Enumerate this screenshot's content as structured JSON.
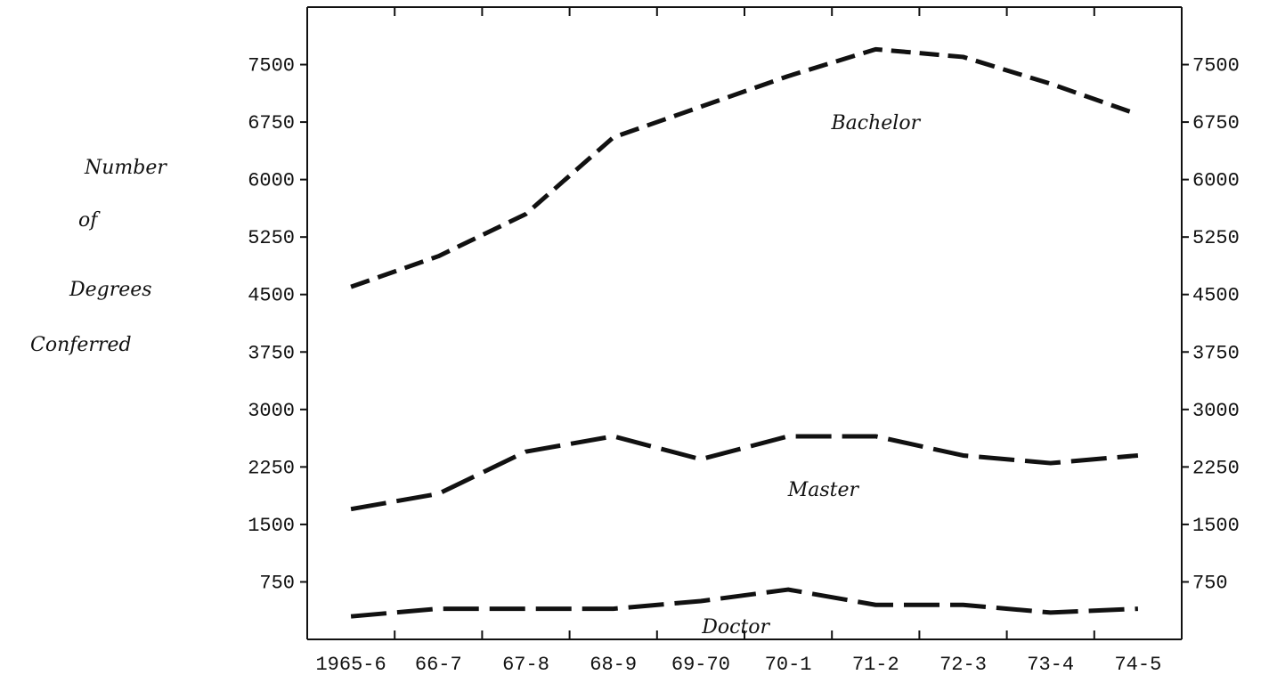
{
  "chart_data": {
    "type": "line",
    "title": "",
    "ylabel_lines": [
      "Number",
      "of",
      "Degrees",
      "Conferred"
    ],
    "xlabel": "",
    "categories": [
      "1965-6",
      "66-7",
      "67-8",
      "68-9",
      "69-70",
      "70-1",
      "71-2",
      "72-3",
      "73-4",
      "74-5"
    ],
    "y_ticks": [
      750,
      1500,
      2250,
      3000,
      3750,
      4500,
      5250,
      6000,
      6750,
      7500
    ],
    "ylim": [
      0,
      8250
    ],
    "grid": false,
    "legend": "none",
    "series": [
      {
        "name": "Bachelor",
        "x": [
          "1965-6",
          "66-7",
          "67-8",
          "68-9",
          "69-70",
          "70-1",
          "71-2",
          "72-3",
          "73-4",
          "74-5"
        ],
        "values": [
          4600,
          5000,
          5550,
          6550,
          6950,
          7350,
          7700,
          7600,
          7250,
          6850
        ],
        "line_style": "dashed"
      },
      {
        "name": "Master",
        "x": [
          "1965-6",
          "66-7",
          "67-8",
          "68-9",
          "69-70",
          "70-1",
          "71-2",
          "72-3",
          "73-4",
          "74-5"
        ],
        "values": [
          1700,
          1900,
          2450,
          2650,
          2350,
          2650,
          2650,
          2400,
          2300,
          2400
        ],
        "line_style": "long-dashed"
      },
      {
        "name": "Doctor",
        "x": [
          "1965-6",
          "66-7",
          "67-8",
          "68-9",
          "69-70",
          "70-1",
          "71-2",
          "72-3",
          "73-4",
          "74-5"
        ],
        "values": [
          300,
          400,
          400,
          400,
          500,
          650,
          450,
          450,
          350,
          400
        ],
        "line_style": "long-dashed"
      }
    ],
    "annotations": [
      "Bachelor",
      "Master",
      "Doctor"
    ],
    "line_color": "#111111"
  }
}
